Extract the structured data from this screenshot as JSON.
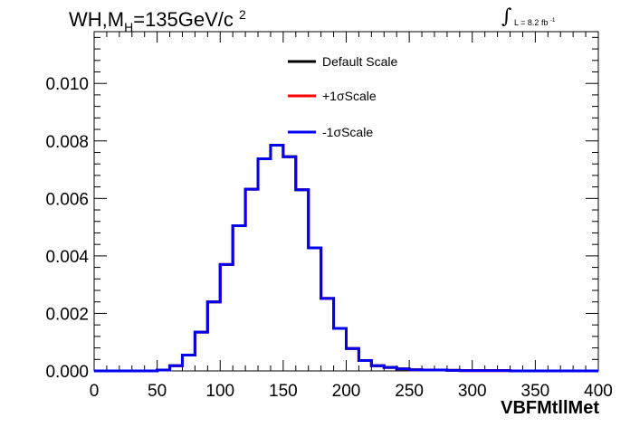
{
  "title": {
    "prefix": "WH,M",
    "subscript": "H",
    "main": "=135GeV/c",
    "superscript": "2"
  },
  "lumi": {
    "integral_symbol": "∫",
    "text": "L = 8.2 fb",
    "superscript": "-1"
  },
  "chart_data": {
    "type": "line",
    "style": "step-histogram",
    "xlabel": "VBFMtllMet",
    "ylabel": "",
    "xlim": [
      0,
      400
    ],
    "ylim": [
      0,
      0.0118
    ],
    "x_ticks": [
      0,
      50,
      100,
      150,
      200,
      250,
      300,
      350,
      400
    ],
    "x_tick_labels": [
      "0",
      "50",
      "100",
      "150",
      "200",
      "250",
      "300",
      "350",
      "400"
    ],
    "y_ticks": [
      0.0,
      0.002,
      0.004,
      0.006,
      0.008,
      0.01
    ],
    "y_tick_labels": [
      "0.000",
      "0.002",
      "0.004",
      "0.006",
      "0.008",
      "0.010"
    ],
    "grid": false,
    "legend_position": "top-center",
    "bin_edges": [
      0,
      10,
      20,
      30,
      40,
      50,
      60,
      70,
      80,
      90,
      100,
      110,
      120,
      130,
      140,
      150,
      160,
      170,
      180,
      190,
      200,
      210,
      220,
      230,
      240,
      250,
      260,
      270,
      280,
      290,
      300,
      310,
      320,
      330,
      340,
      350,
      360,
      370,
      380,
      390,
      400
    ],
    "series": [
      {
        "name": "Default Scale",
        "color": "#000000",
        "values": [
          0,
          0,
          0,
          0,
          0,
          3e-05,
          0.00018,
          0.00055,
          0.00135,
          0.0024,
          0.0037,
          0.00505,
          0.00632,
          0.00738,
          0.00785,
          0.00745,
          0.0063,
          0.00428,
          0.00252,
          0.00148,
          0.00078,
          0.00036,
          0.00018,
          0.00012,
          7e-05,
          4e-05,
          3e-05,
          3e-05,
          2e-05,
          1e-05,
          1e-05,
          1e-05,
          1e-05,
          0,
          0,
          0,
          0,
          0,
          0,
          0
        ]
      },
      {
        "name": "+1σScale",
        "color": "#ff0000",
        "values": [
          0,
          0,
          0,
          0,
          0,
          3e-05,
          0.00018,
          0.00055,
          0.00135,
          0.0024,
          0.0037,
          0.00505,
          0.00632,
          0.00738,
          0.00785,
          0.00745,
          0.0063,
          0.00428,
          0.00252,
          0.00148,
          0.00078,
          0.00036,
          0.00018,
          0.00012,
          7e-05,
          4e-05,
          3e-05,
          3e-05,
          2e-05,
          1e-05,
          1e-05,
          1e-05,
          1e-05,
          0,
          0,
          0,
          0,
          0,
          0,
          0
        ]
      },
      {
        "name": "-1σScale",
        "color": "#0000ee",
        "values": [
          0,
          0,
          0,
          0,
          0,
          3e-05,
          0.00018,
          0.00055,
          0.00135,
          0.0024,
          0.0037,
          0.00505,
          0.00632,
          0.00738,
          0.00785,
          0.00745,
          0.0063,
          0.00428,
          0.00252,
          0.00148,
          0.00078,
          0.00036,
          0.00018,
          0.00012,
          7e-05,
          4e-05,
          3e-05,
          3e-05,
          2e-05,
          1e-05,
          1e-05,
          1e-05,
          1e-05,
          0,
          0,
          0,
          0,
          0,
          0,
          0
        ]
      }
    ]
  }
}
